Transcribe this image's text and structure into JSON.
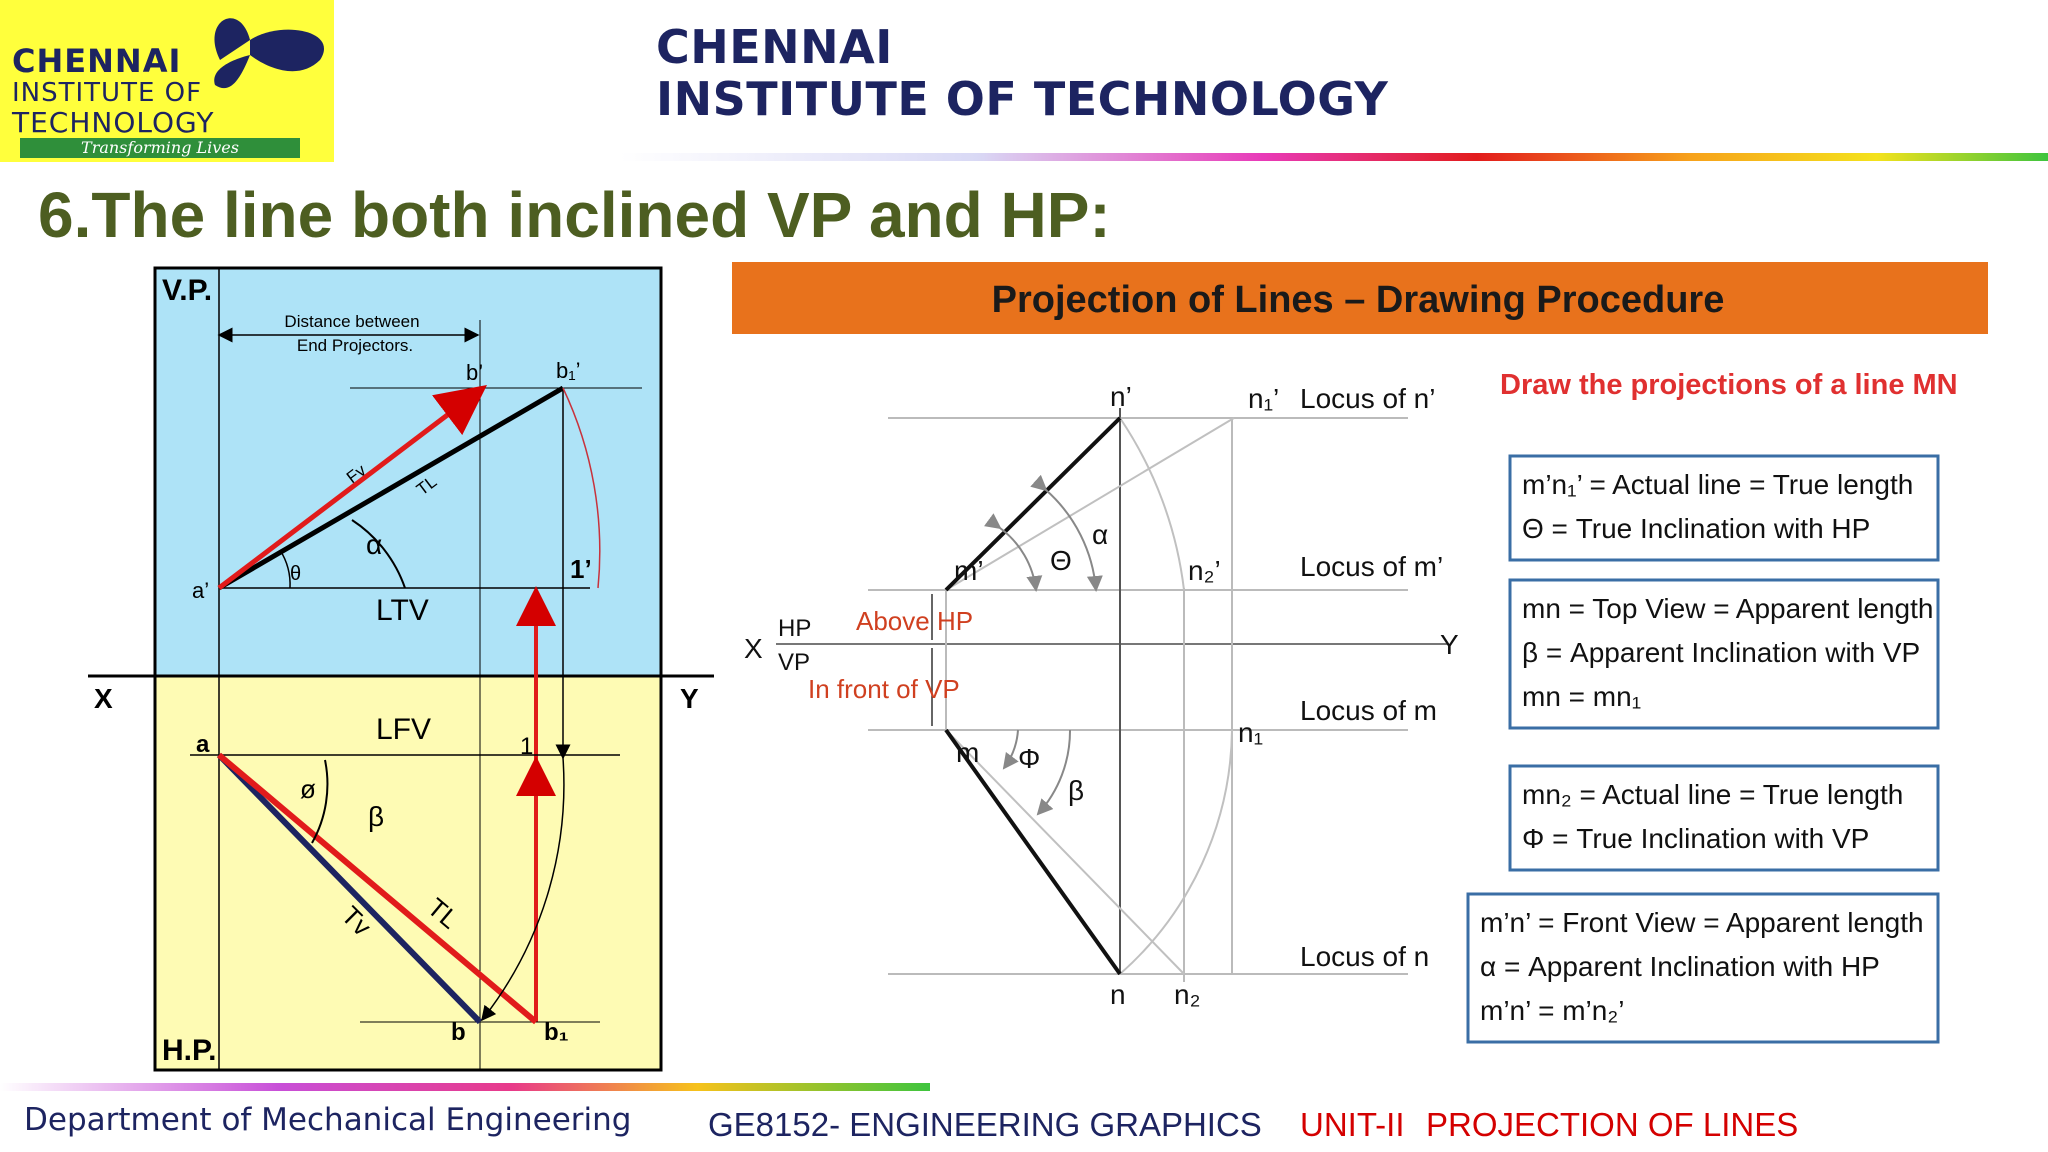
{
  "logo": {
    "line1": "CHENNAI",
    "line2": "INSTITUTE OF",
    "line3": "TECHNOLOGY",
    "tagline": "Transforming Lives"
  },
  "header": {
    "institute_line1": "CHENNAI",
    "institute_line2": "INSTITUTE OF TECHNOLOGY"
  },
  "slide_title": "6.The line both inclined VP and HP:",
  "left_diagram": {
    "vp": "V.P.",
    "hp": "H.P.",
    "x": "X",
    "y": "Y",
    "distance_line1": "Distance between",
    "distance_line2": "End Projectors.",
    "b_prime": "b’",
    "b1_prime": "b₁’",
    "a_prime": "a’",
    "theta": "θ",
    "alpha": "α",
    "fv": "Fv",
    "tl_top": "TL",
    "ltv": "LTV",
    "one_prime": "1’",
    "lfv": "LFV",
    "a": "a",
    "one": "1",
    "phi": "ø",
    "beta": "β",
    "tv": "Tv",
    "tl_bottom": "TL",
    "b": "b",
    "b1": "b₁"
  },
  "right_diagram": {
    "banner": "Projection of Lines – Drawing Procedure",
    "instruction": "Draw the projections of a line MN",
    "n_prime": "n’",
    "n1_prime": "n₁’",
    "locus_n_prime": "Locus of n’",
    "alpha": "α",
    "theta": "Θ",
    "m_prime": "m’",
    "n2_prime": "n₂’",
    "locus_m_prime": "Locus of m’",
    "x": "X",
    "y": "Y",
    "hp": "HP",
    "vp": "VP",
    "above_hp": "Above HP",
    "in_front_vp": "In front of VP",
    "m": "m",
    "phi": "Φ",
    "beta": "β",
    "n1": "n₁",
    "locus_m": "Locus of m",
    "n": "n",
    "n2": "n₂",
    "locus_n": "Locus of n",
    "box1_line1": "m’n₁’ = Actual line = True length",
    "box1_line2": "Θ = True Inclination with HP",
    "box2_line1": "mn = Top View = Apparent length",
    "box2_line2": "β = Apparent Inclination with VP",
    "box2_line3": "mn = mn₁",
    "box3_line1": "mn₂ = Actual line = True length",
    "box3_line2": "Φ = True Inclination with VP",
    "box4_line1": "m’n’ = Front View = Apparent length",
    "box4_line2": "α = Apparent Inclination with HP",
    "box4_line3": "m’n’ = m’n₂’"
  },
  "footer": {
    "department": "Department of Mechanical Engineering",
    "course": "GE8152- ENGINEERING GRAPHICS",
    "unit": "UNIT-II",
    "topic": "PROJECTION OF LINES"
  },
  "colors": {
    "navy": "#1d2461",
    "olive": "#4d5e21",
    "red": "#d40000",
    "orange": "#e8721c",
    "vp_blue": "#aee3f7",
    "hp_yellow": "#fefbb4",
    "box_border": "#3a6ea5"
  }
}
